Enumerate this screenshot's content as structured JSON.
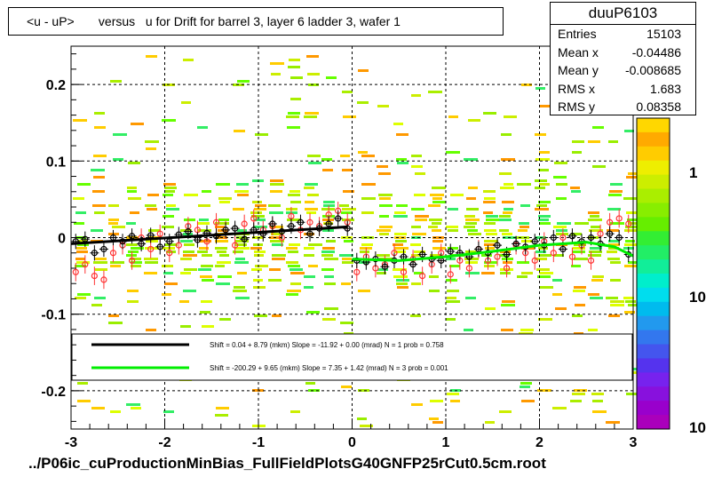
{
  "chart_data": {
    "type": "scatter",
    "title": "<u - uP>       versus   u for Drift for barrel 3, layer 6 ladder 3, wafer 1",
    "xlim": [
      -3,
      3
    ],
    "ylim": [
      -0.25,
      0.25
    ],
    "x_ticks": [
      "-3",
      "-2",
      "-1",
      "0",
      "1",
      "2",
      "3"
    ],
    "y_ticks": [
      "0.2",
      "0.1",
      "0",
      "-0.1",
      "-0.2"
    ],
    "colorbar_ticks": [
      "1",
      "10",
      "10"
    ],
    "grid": true,
    "stats": {
      "name": "duuP6103",
      "rows": [
        {
          "label": "Entries",
          "value": "15103"
        },
        {
          "label": "Mean x",
          "value": "-0.04486"
        },
        {
          "label": "Mean y",
          "value": "-0.008685"
        },
        {
          "label": "RMS x",
          "value": "1.683"
        },
        {
          "label": "RMS y",
          "value": "0.08358"
        }
      ]
    },
    "fits": [
      {
        "color": "#000000",
        "text": "Shift =     0.04 + 8.79 (mkm) Slope =   -11.92 + 0.00 (mrad)  N = 1 prob = 0.758",
        "x": [
          -3,
          -0.05
        ],
        "y": [
          -0.008,
          0.014
        ]
      },
      {
        "color": "#00ee00",
        "text": "Shift =  -200.29 + 9.65 (mkm) Slope =     7.35 + 1.42 (mrad)  N = 3 prob = 0.001",
        "x": [
          0.0,
          0.5,
          1.0,
          1.5,
          2.0,
          2.5,
          2.8,
          3.0
        ],
        "y": [
          -0.028,
          -0.03,
          -0.025,
          -0.018,
          -0.01,
          -0.006,
          -0.012,
          -0.024
        ]
      }
    ],
    "profile_black": {
      "x": [
        -2.95,
        -2.85,
        -2.75,
        -2.65,
        -2.55,
        -2.45,
        -2.35,
        -2.25,
        -2.15,
        -2.05,
        -1.95,
        -1.85,
        -1.75,
        -1.65,
        -1.55,
        -1.45,
        -1.35,
        -1.25,
        -1.15,
        -1.05,
        -0.95,
        -0.85,
        -0.75,
        -0.65,
        -0.55,
        -0.45,
        -0.35,
        -0.25,
        -0.15,
        -0.05,
        0.05,
        0.15,
        0.25,
        0.35,
        0.45,
        0.55,
        0.65,
        0.75,
        0.85,
        0.95,
        1.05,
        1.15,
        1.25,
        1.35,
        1.45,
        1.55,
        1.65,
        1.75,
        1.85,
        1.95,
        2.05,
        2.15,
        2.25,
        2.35,
        2.45,
        2.55,
        2.65,
        2.75,
        2.85,
        2.95
      ],
      "y": [
        -0.005,
        -0.002,
        -0.02,
        -0.015,
        0.0,
        -0.005,
        0.002,
        -0.008,
        0.003,
        -0.012,
        -0.005,
        0.004,
        0.008,
        -0.003,
        0.006,
        0.002,
        0.01,
        0.012,
        -0.002,
        0.01,
        0.005,
        0.018,
        0.008,
        0.015,
        0.02,
        0.005,
        0.012,
        0.018,
        0.025,
        0.012,
        -0.03,
        -0.032,
        -0.028,
        -0.038,
        -0.03,
        -0.025,
        -0.035,
        -0.022,
        -0.028,
        -0.03,
        -0.018,
        -0.02,
        -0.025,
        -0.015,
        -0.02,
        -0.01,
        -0.022,
        -0.008,
        -0.012,
        -0.005,
        -0.01,
        0.0,
        -0.015,
        0.002,
        -0.005,
        0.0,
        -0.008,
        0.005,
        0.0,
        -0.022
      ]
    },
    "profile_red": {
      "x": [
        -2.95,
        -2.85,
        -2.75,
        -2.65,
        -2.55,
        -2.45,
        -2.35,
        -2.25,
        -2.15,
        -2.05,
        -1.95,
        -1.85,
        -1.75,
        -1.65,
        -1.55,
        -1.45,
        -1.35,
        -1.25,
        -1.15,
        -1.05,
        -0.95,
        -0.85,
        -0.75,
        -0.65,
        -0.55,
        -0.45,
        -0.35,
        -0.25,
        -0.15,
        -0.05,
        0.05,
        0.15,
        0.25,
        0.35,
        0.45,
        0.55,
        0.65,
        0.75,
        0.85,
        0.95,
        1.05,
        1.15,
        1.25,
        1.35,
        1.45,
        1.55,
        1.65,
        1.75,
        1.85,
        1.95,
        2.05,
        2.15,
        2.25,
        2.35,
        2.45,
        2.55,
        2.65,
        2.75,
        2.85,
        2.95
      ],
      "y": [
        -0.045,
        -0.035,
        -0.05,
        -0.055,
        -0.02,
        -0.01,
        -0.03,
        0.0,
        -0.015,
        0.005,
        -0.02,
        -0.01,
        0.015,
        0.01,
        -0.005,
        0.02,
        0.01,
        -0.01,
        0.018,
        0.025,
        0.01,
        0.015,
        0.0,
        0.028,
        0.01,
        0.02,
        0.015,
        0.03,
        0.035,
        0.02,
        -0.045,
        -0.025,
        -0.04,
        -0.035,
        -0.02,
        -0.045,
        -0.028,
        -0.05,
        -0.035,
        -0.02,
        -0.048,
        -0.03,
        -0.04,
        -0.015,
        -0.03,
        -0.025,
        -0.04,
        -0.01,
        -0.02,
        -0.03,
        -0.005,
        -0.02,
        0.0,
        -0.025,
        -0.01,
        -0.03,
        0.005,
        0.02,
        0.025,
        0.018
      ]
    }
  }
}
